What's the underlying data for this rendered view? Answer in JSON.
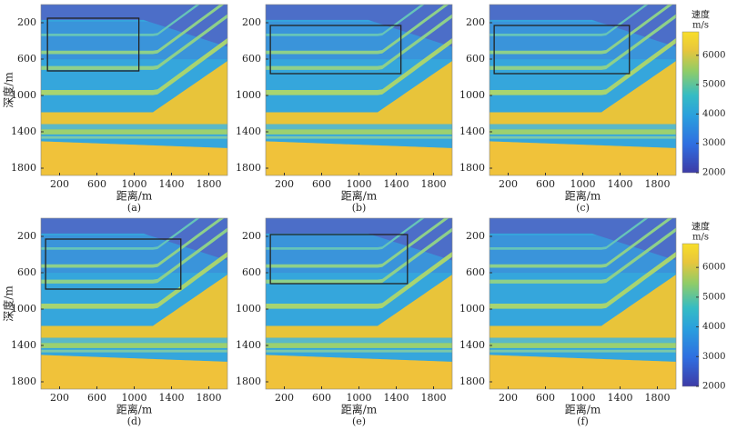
{
  "chart_data": [
    {
      "type": "heatmap",
      "caption": "(a)",
      "x_label": "距离/m",
      "y_label": "深度/m",
      "xlim": [
        0,
        2000
      ],
      "ylim": [
        0,
        1880
      ],
      "xticks": [
        200,
        600,
        1000,
        1400,
        1800
      ],
      "yticks": [
        200,
        600,
        1000,
        1400,
        1800
      ],
      "box": {
        "x": [
          70,
          1050
        ],
        "y": [
          150,
          730
        ]
      }
    },
    {
      "type": "heatmap",
      "caption": "(b)",
      "x_label": "距离/m",
      "xlim": [
        0,
        2000
      ],
      "ylim": [
        0,
        1880
      ],
      "xticks": [
        200,
        600,
        1000,
        1400,
        1800
      ],
      "yticks": [
        200,
        600,
        1000,
        1400,
        1800
      ],
      "box": {
        "x": [
          50,
          1450
        ],
        "y": [
          230,
          760
        ]
      }
    },
    {
      "type": "heatmap",
      "caption": "(c)",
      "x_label": "距离/m",
      "xlim": [
        0,
        2000
      ],
      "ylim": [
        0,
        1880
      ],
      "xticks": [
        200,
        600,
        1000,
        1400,
        1800
      ],
      "yticks": [
        200,
        600,
        1000,
        1400,
        1800
      ],
      "box": {
        "x": [
          50,
          1500
        ],
        "y": [
          230,
          760
        ]
      },
      "colorbar": {
        "title": "速度",
        "unit": "m/s",
        "lim": [
          2000,
          6800
        ],
        "ticks": [
          2000,
          3000,
          4000,
          5000,
          6000
        ]
      }
    },
    {
      "type": "heatmap",
      "caption": "(d)",
      "x_label": "距离/m",
      "y_label": "深度/m",
      "xlim": [
        0,
        2000
      ],
      "ylim": [
        0,
        1880
      ],
      "xticks": [
        200,
        600,
        1000,
        1400,
        1800
      ],
      "yticks": [
        200,
        600,
        1000,
        1400,
        1800
      ],
      "box": {
        "x": [
          50,
          1500
        ],
        "y": [
          230,
          780
        ]
      }
    },
    {
      "type": "heatmap",
      "caption": "(e)",
      "x_label": "距离/m",
      "xlim": [
        0,
        2000
      ],
      "ylim": [
        0,
        1880
      ],
      "xticks": [
        200,
        600,
        1000,
        1400,
        1800
      ],
      "yticks": [
        200,
        600,
        1000,
        1400,
        1800
      ],
      "box": {
        "x": [
          50,
          1520
        ],
        "y": [
          180,
          720
        ]
      }
    },
    {
      "type": "heatmap",
      "caption": "(f)",
      "x_label": "距离/m",
      "xlim": [
        0,
        2000
      ],
      "ylim": [
        0,
        1880
      ],
      "xticks": [
        200,
        600,
        1000,
        1400,
        1800
      ],
      "yticks": [
        200,
        600,
        1000,
        1400,
        1800
      ],
      "colorbar": {
        "title": "速度",
        "unit": "m/s",
        "lim": [
          2000,
          6800
        ],
        "ticks": [
          2000,
          3000,
          4000,
          5000,
          6000
        ]
      }
    }
  ]
}
